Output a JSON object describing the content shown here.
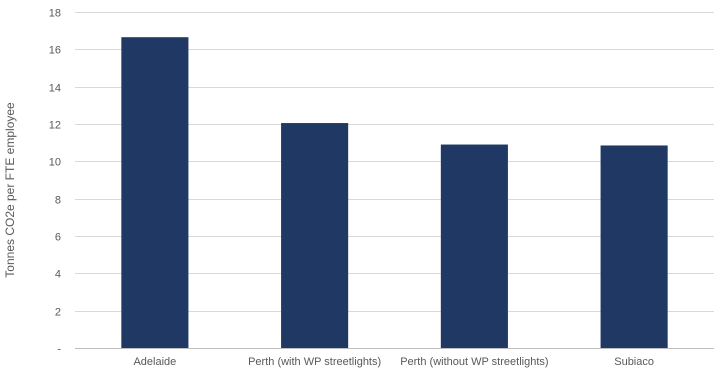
{
  "chart_data": {
    "type": "bar",
    "categories": [
      "Adelaide",
      "Perth (with WP streetlights)",
      "Perth (without WP streetlights)",
      "Subiaco"
    ],
    "values": [
      16.65,
      12.05,
      10.9,
      10.85
    ],
    "title": "",
    "xlabel": "",
    "ylabel": "Tonnes CO2e per FTE  employee",
    "ylim": [
      0,
      18
    ],
    "y_ticks": [
      0,
      2,
      4,
      6,
      8,
      10,
      12,
      14,
      16,
      18
    ],
    "y_tick_labels": [
      "-",
      "2",
      "4",
      "6",
      "8",
      "10",
      "12",
      "14",
      "16",
      "18"
    ],
    "grid": true,
    "legend": "none",
    "bar_color": "#203864",
    "grid_color": "#d9d9d9"
  }
}
